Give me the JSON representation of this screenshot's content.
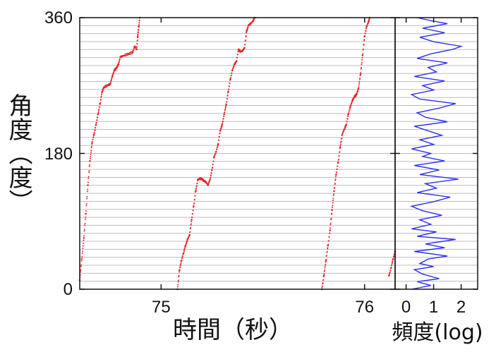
{
  "chart_data": [
    {
      "type": "scatter",
      "xlabel": "時間（秒）",
      "ylabel": "角度（度）",
      "xticks": [
        75,
        76
      ],
      "yticks": [
        0,
        180,
        360
      ],
      "xlim": [
        74.6,
        76.15
      ],
      "ylim": [
        0,
        360
      ],
      "grid": "horizontal",
      "color": "#e8262a",
      "series": [
        {
          "points": [
            [
              74.6,
              12
            ],
            [
              74.61,
              40
            ],
            [
              74.62,
              68
            ],
            [
              74.63,
              100
            ],
            [
              74.64,
              138
            ],
            [
              74.65,
              170
            ],
            [
              74.66,
              193
            ],
            [
              74.67,
              205
            ],
            [
              74.68,
              218
            ],
            [
              74.69,
              232
            ],
            [
              74.7,
              246
            ],
            [
              74.71,
              262
            ],
            [
              74.72,
              268
            ],
            [
              74.735,
              270
            ],
            [
              74.75,
              272
            ],
            [
              74.76,
              282
            ],
            [
              74.77,
              290
            ],
            [
              74.78,
              293
            ],
            [
              74.79,
              298
            ],
            [
              74.8,
              308
            ],
            [
              74.82,
              310
            ],
            [
              74.84,
              312
            ],
            [
              74.86,
              314
            ],
            [
              74.87,
              322
            ],
            [
              74.88,
              318
            ],
            [
              74.885,
              335
            ],
            [
              74.89,
              348
            ],
            [
              74.895,
              360
            ]
          ]
        },
        {
          "points": [
            [
              75.08,
              0
            ],
            [
              75.09,
              25
            ],
            [
              75.1,
              38
            ],
            [
              75.11,
              48
            ],
            [
              75.12,
              58
            ],
            [
              75.13,
              66
            ],
            [
              75.14,
              72
            ],
            [
              75.15,
              92
            ],
            [
              75.16,
              110
            ],
            [
              75.17,
              130
            ],
            [
              75.18,
              145
            ],
            [
              75.19,
              147
            ],
            [
              75.2,
              146
            ],
            [
              75.21,
              144
            ],
            [
              75.22,
              142
            ],
            [
              75.23,
              138
            ],
            [
              75.24,
              145
            ],
            [
              75.25,
              158
            ],
            [
              75.26,
              175
            ],
            [
              75.27,
              182
            ],
            [
              75.28,
              192
            ],
            [
              75.29,
              210
            ],
            [
              75.3,
              218
            ],
            [
              75.31,
              232
            ],
            [
              75.32,
              245
            ],
            [
              75.33,
              262
            ],
            [
              75.34,
              278
            ],
            [
              75.35,
              290
            ],
            [
              75.36,
              298
            ],
            [
              75.37,
              302
            ],
            [
              75.38,
              318
            ],
            [
              75.39,
              315
            ],
            [
              75.4,
              316
            ],
            [
              75.41,
              320
            ],
            [
              75.42,
              342
            ],
            [
              75.43,
              350
            ],
            [
              75.44,
              352
            ],
            [
              75.45,
              355
            ],
            [
              75.46,
              360
            ]
          ]
        },
        {
          "points": [
            [
              75.79,
              0
            ],
            [
              75.8,
              18
            ],
            [
              75.81,
              38
            ],
            [
              75.82,
              58
            ],
            [
              75.83,
              78
            ],
            [
              75.84,
              105
            ],
            [
              75.85,
              130
            ],
            [
              75.86,
              152
            ],
            [
              75.87,
              168
            ],
            [
              75.88,
              188
            ],
            [
              75.89,
              205
            ],
            [
              75.9,
              212
            ],
            [
              75.91,
              218
            ],
            [
              75.92,
              232
            ],
            [
              75.93,
              242
            ],
            [
              75.94,
              250
            ],
            [
              75.95,
              255
            ],
            [
              75.96,
              258
            ],
            [
              75.97,
              266
            ],
            [
              75.98,
              285
            ],
            [
              75.99,
              310
            ],
            [
              76.0,
              335
            ],
            [
              76.01,
              348
            ],
            [
              76.02,
              355
            ],
            [
              76.025,
              360
            ]
          ]
        },
        {
          "points": [
            [
              76.12,
              18
            ],
            [
              76.13,
              28
            ],
            [
              76.14,
              40
            ],
            [
              76.15,
              50
            ]
          ]
        }
      ]
    },
    {
      "type": "line",
      "xlabel": "頻度(log)",
      "xticks": [
        0,
        1,
        2
      ],
      "xlim": [
        -0.4,
        2.6
      ],
      "ylim": [
        0,
        360
      ],
      "color": "#2a2ff0",
      "series": [
        {
          "points": [
            [
              0.2,
              0
            ],
            [
              0.9,
              5
            ],
            [
              0.4,
              10
            ],
            [
              1.2,
              14
            ],
            [
              0.6,
              20
            ],
            [
              0.3,
              26
            ],
            [
              1.0,
              30
            ],
            [
              0.5,
              34
            ],
            [
              0.8,
              40
            ],
            [
              1.5,
              44
            ],
            [
              0.3,
              50
            ],
            [
              1.4,
              55
            ],
            [
              0.7,
              60
            ],
            [
              1.8,
              66
            ],
            [
              0.4,
              70
            ],
            [
              1.1,
              76
            ],
            [
              0.2,
              80
            ],
            [
              0.9,
              86
            ],
            [
              0.5,
              92
            ],
            [
              1.3,
              98
            ],
            [
              0.6,
              104
            ],
            [
              0.2,
              110
            ],
            [
              1.0,
              116
            ],
            [
              1.6,
              122
            ],
            [
              0.4,
              128
            ],
            [
              1.1,
              134
            ],
            [
              0.7,
              140
            ],
            [
              1.9,
              146
            ],
            [
              0.5,
              152
            ],
            [
              1.2,
              158
            ],
            [
              0.3,
              164
            ],
            [
              1.4,
              170
            ],
            [
              0.6,
              176
            ],
            [
              0.9,
              180
            ],
            [
              0.2,
              186
            ],
            [
              1.0,
              192
            ],
            [
              0.5,
              198
            ],
            [
              1.3,
              204
            ],
            [
              0.8,
              210
            ],
            [
              0.3,
              216
            ],
            [
              1.5,
              222
            ],
            [
              0.7,
              228
            ],
            [
              0.4,
              234
            ],
            [
              1.2,
              240
            ],
            [
              1.8,
              246
            ],
            [
              0.5,
              252
            ],
            [
              0.2,
              258
            ],
            [
              1.0,
              264
            ],
            [
              0.6,
              270
            ],
            [
              1.4,
              276
            ],
            [
              0.3,
              282
            ],
            [
              1.1,
              288
            ],
            [
              0.8,
              294
            ],
            [
              1.5,
              300
            ],
            [
              0.4,
              306
            ],
            [
              0.9,
              312
            ],
            [
              1.7,
              318
            ],
            [
              2.0,
              322
            ],
            [
              1.0,
              328
            ],
            [
              0.5,
              334
            ],
            [
              1.4,
              340
            ],
            [
              0.6,
              346
            ],
            [
              1.5,
              352
            ],
            [
              0.9,
              356
            ],
            [
              0.4,
              360
            ]
          ]
        }
      ]
    }
  ]
}
